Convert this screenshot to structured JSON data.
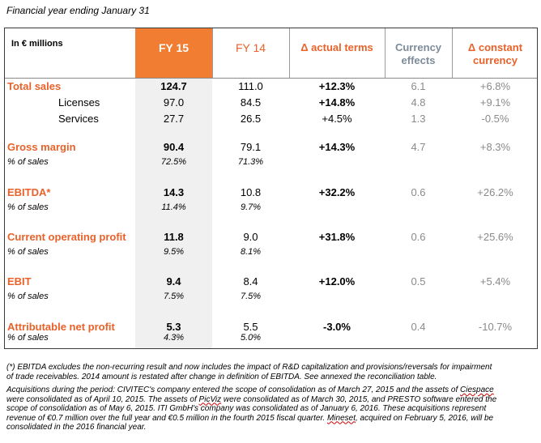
{
  "caption": "Financial year ending January 31",
  "headers": {
    "units": "In € millions",
    "fy15": "FY 15",
    "fy14": "FY 14",
    "delta_actual_1": "Δ actual terms",
    "currency_1": "Currency",
    "currency_2": "effects",
    "delta_const_1": "Δ constant",
    "delta_const_2": "currency"
  },
  "rows": [
    {
      "label": "Total sales",
      "fy15": "124.7",
      "fy14": "111.0",
      "delta": "+12.3%",
      "currency": "6.1",
      "constant": "+6.8%"
    },
    {
      "label": "Licenses",
      "fy15": "97.0",
      "fy14": "84.5",
      "delta": "+14.8%",
      "currency": "4.8",
      "constant": "+9.1%"
    },
    {
      "label": "Services",
      "fy15": "27.7",
      "fy14": "26.5",
      "delta": "+4.5%",
      "currency": "1.3",
      "constant": "-0.5%"
    },
    {
      "label": "Gross margin",
      "fy15": "90.4",
      "fy14": "79.1",
      "delta": "+14.3%",
      "currency": "4.7",
      "constant": "+8.3%"
    },
    {
      "label": "% of sales",
      "fy15": "72.5%",
      "fy14": "71.3%"
    },
    {
      "label": "EBITDA*",
      "fy15": "14.3",
      "fy14": "10.8",
      "delta": "+32.2%",
      "currency": "0.6",
      "constant": "+26.2%"
    },
    {
      "label": "% of sales",
      "fy15": "11.4%",
      "fy14": "9.7%"
    },
    {
      "label": "Current operating profit",
      "fy15": "11.8",
      "fy14": "9.0",
      "delta": "+31.8%",
      "currency": "0.6",
      "constant": "+25.6%"
    },
    {
      "label": "% of sales",
      "fy15": "9.5%",
      "fy14": "8.1%"
    },
    {
      "label": "EBIT",
      "fy15": "9.4",
      "fy14": "8.4",
      "delta": "+12.0%",
      "currency": "0.5",
      "constant": "+5.4%"
    },
    {
      "label": "% of sales",
      "fy15": "7.5%",
      "fy14": "7.5%"
    },
    {
      "label": "Attributable net profit",
      "fy15": "5.3",
      "fy14": "5.5",
      "delta": "-3.0%",
      "currency": "0.4",
      "constant": "-10.7%"
    },
    {
      "label": "% of sales",
      "fy15": "4.3%",
      "fy14": "5.0%"
    }
  ],
  "notes": {
    "ebitda_1": "(*) EBITDA excludes the non-recurring result and now includes the impact of R&D capitalization and provisions/reversals for impairment",
    "ebitda_2": "of trade receivables. 2014 amount is restated after change in definition of EBITDA. See annexed the reconciliation table.",
    "acq_1a": "Acquisitions during the period: CIVITEC's company entered the scope of consolidation as of March 27, 2015 and the assets of ",
    "acq_1b": "Ciespace",
    "acq_2a": "were consolidated as of April 10, 2015. The assets of ",
    "acq_2b": "PicViz",
    "acq_2c": " were consolidated as of March 30, 2015, and PRESTO software entered the",
    "acq_3": "scope of consolidation as of May 6, 2015. ITI GmbH's company was consolidated as of January 6, 2016.  These acquisitions represent",
    "acq_4a": "revenue of €0.7 million over the full year and €0.5 million in the fourth 2015 fiscal quarter. ",
    "acq_4b": "Mineset",
    "acq_4c": ", acquired on February 5, 2016, will be",
    "acq_5": "consolidated in the 2016 financial year."
  }
}
